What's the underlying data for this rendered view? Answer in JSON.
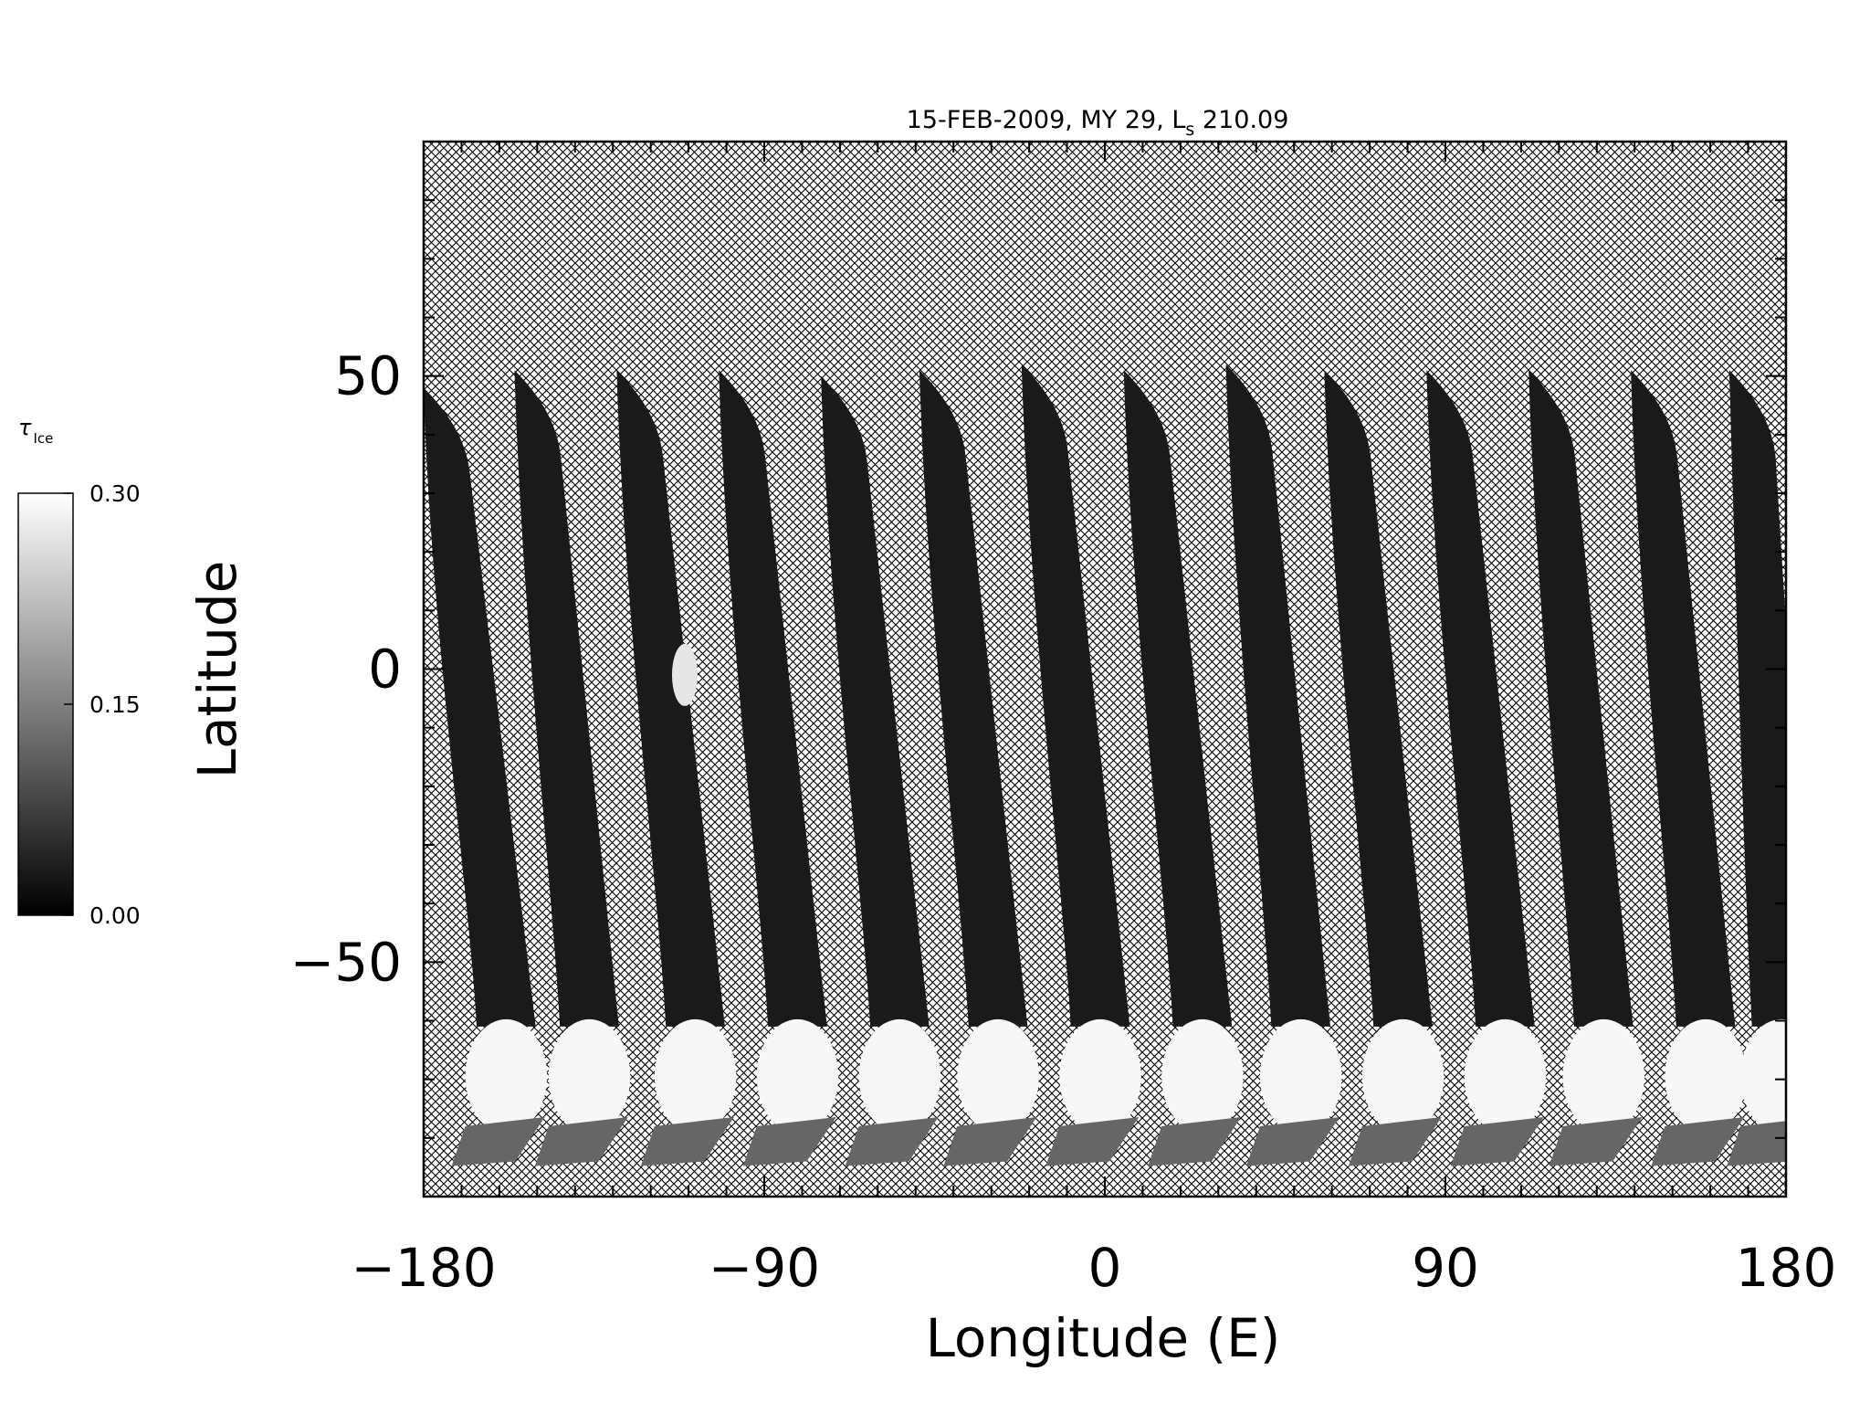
{
  "chart_data": {
    "type": "heatmap",
    "title": {
      "date": "15-FEB-2009",
      "mars_year": "MY 29",
      "ls_symbol": "L",
      "ls_subscript": "s",
      "ls_value": "210.09"
    },
    "xlabel": "Longitude (E)",
    "ylabel": "Latitude",
    "xlim": [
      -180,
      180
    ],
    "ylim": [
      -90,
      90
    ],
    "x_ticks": [
      -180,
      -90,
      0,
      90,
      180
    ],
    "x_tick_labels": [
      "−180",
      "−90",
      "0",
      "90",
      "180"
    ],
    "y_ticks": [
      -50,
      0,
      50
    ],
    "y_tick_labels": [
      "−50",
      "0",
      "50"
    ],
    "no_data_fill": "crosshatch",
    "colorbar": {
      "symbol": "τ",
      "subscript": "Ice",
      "min": 0.0,
      "max": 0.3,
      "tick_values": [
        0.0,
        0.15,
        0.3
      ],
      "tick_labels": [
        "0.00",
        "0.15",
        "0.30"
      ],
      "colormap": "grayscale (black = 0.00, white = 0.30)"
    },
    "swaths": [
      {
        "lon_top": -180,
        "lon_bottom": -157,
        "lat_top": 48
      },
      {
        "lon_top": -156,
        "lon_bottom": -135,
        "lat_top": 51
      },
      {
        "lon_top": -129,
        "lon_bottom": -107,
        "lat_top": 51
      },
      {
        "lon_top": -102,
        "lon_bottom": -80,
        "lat_top": 51
      },
      {
        "lon_top": -75,
        "lon_bottom": -53,
        "lat_top": 50
      },
      {
        "lon_top": -49,
        "lon_bottom": -27,
        "lat_top": 51
      },
      {
        "lon_top": -22,
        "lon_bottom": 0,
        "lat_top": 52
      },
      {
        "lon_top": 5,
        "lon_bottom": 27,
        "lat_top": 51
      },
      {
        "lon_top": 32,
        "lon_bottom": 53,
        "lat_top": 52
      },
      {
        "lon_top": 58,
        "lon_bottom": 80,
        "lat_top": 51
      },
      {
        "lon_top": 85,
        "lon_bottom": 107,
        "lat_top": 51
      },
      {
        "lon_top": 112,
        "lon_bottom": 133,
        "lat_top": 51
      },
      {
        "lon_top": 139,
        "lon_bottom": 160,
        "lat_top": 51
      },
      {
        "lon_top": 165,
        "lon_bottom": 180,
        "lat_top": 51
      }
    ],
    "bright_cap_lat_top": -61,
    "bright_cap_lat_bottom": -78,
    "tau_swath_typical": 0.03,
    "tau_cap_typical": 0.29,
    "tau_bright_patch": 0.27
  }
}
